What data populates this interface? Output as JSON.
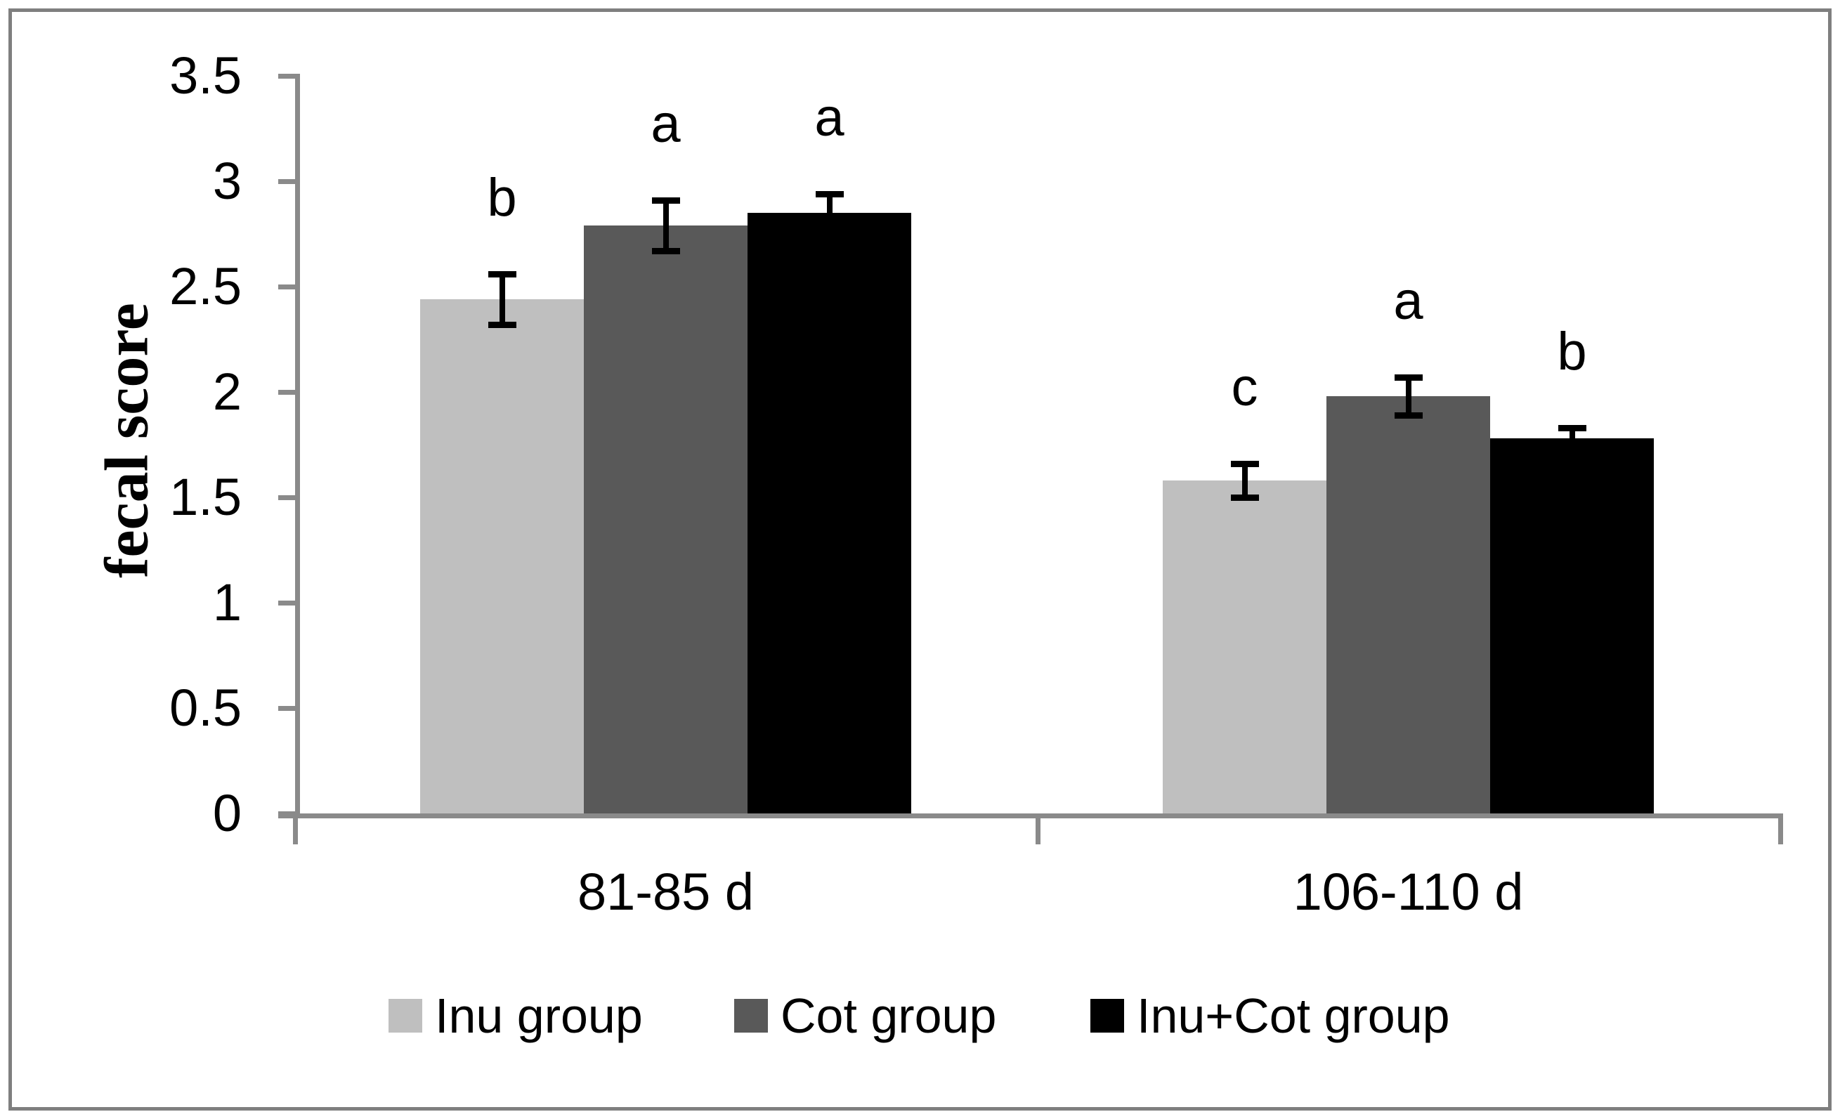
{
  "chart_data": {
    "type": "bar",
    "title": "",
    "ylabel": "fecal score",
    "xlabel": "",
    "ylim": [
      0,
      3.5
    ],
    "ytick_values": [
      0,
      0.5,
      1,
      1.5,
      2,
      2.5,
      3,
      3.5
    ],
    "ytick_labels": [
      "0",
      "0.5",
      "1",
      "1.5",
      "2",
      "2.5",
      "3",
      "3.5"
    ],
    "categories": [
      "81-85 d",
      "106-110 d"
    ],
    "series": [
      {
        "name": "Inu group",
        "color": "#bfbfbf",
        "values": [
          2.44,
          1.58
        ],
        "errors": [
          0.12,
          0.08
        ],
        "sig_letters": [
          "b",
          "c"
        ]
      },
      {
        "name": "Cot group",
        "color": "#595959",
        "values": [
          2.79,
          1.98
        ],
        "errors": [
          0.12,
          0.09
        ],
        "sig_letters": [
          "a",
          "a"
        ]
      },
      {
        "name": "Inu+Cot group",
        "color": "#000000",
        "values": [
          2.85,
          1.78
        ],
        "errors": [
          0.09,
          0.05
        ],
        "sig_letters": [
          "a",
          "b"
        ]
      }
    ],
    "legend": {
      "position": "bottom",
      "entries": [
        "Inu group",
        "Cot group",
        "Inu+Cot group"
      ]
    },
    "grid": false,
    "error_bars": true,
    "colors": {
      "axis": "#8a8a8a",
      "frame_border": "#7f7f7f",
      "background": "#ffffff",
      "text": "#000000",
      "error_bar": "#000000"
    }
  }
}
